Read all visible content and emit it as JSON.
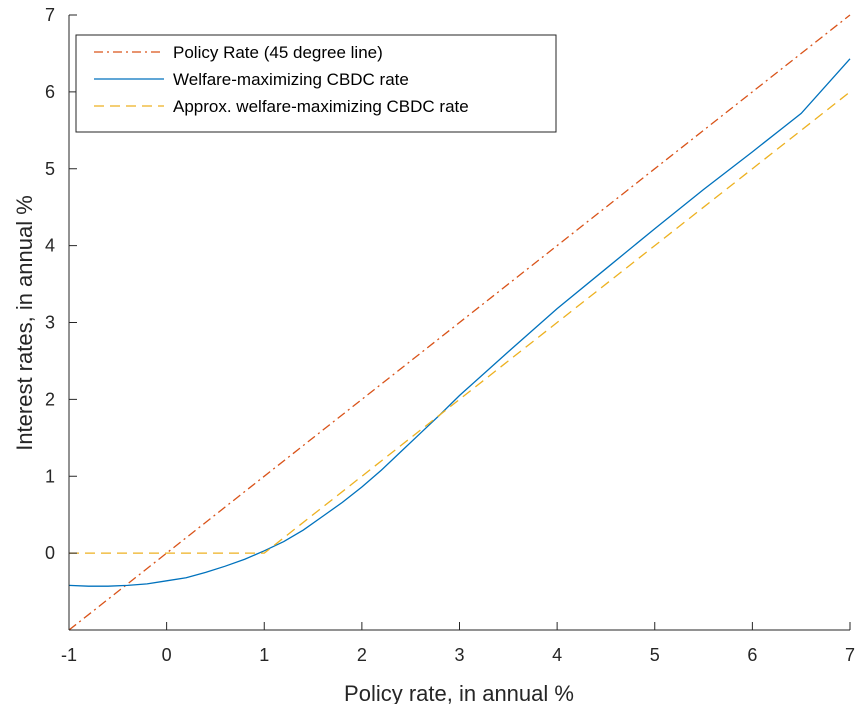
{
  "chart_data": {
    "type": "line",
    "title": "",
    "xlabel": "Policy rate, in annual %",
    "ylabel": "Interest rates, in annual %",
    "xlim": [
      -1,
      7
    ],
    "ylim": [
      -1,
      7
    ],
    "xticks": [
      "-1",
      "0",
      "1",
      "2",
      "3",
      "4",
      "5",
      "6",
      "7"
    ],
    "yticks": [
      "0",
      "1",
      "2",
      "3",
      "4",
      "5",
      "6",
      "7"
    ],
    "grid": false,
    "legend_position": "top-left",
    "series": [
      {
        "name": "Policy Rate (45 degree line)",
        "color": "#D95319",
        "dash": "dash-dot",
        "x": [
          -1,
          7
        ],
        "y": [
          -1,
          7
        ]
      },
      {
        "name": "Welfare-maximizing CBDC rate",
        "color": "#0072BD",
        "dash": "solid",
        "x": [
          -1,
          -0.8,
          -0.6,
          -0.4,
          -0.2,
          0,
          0.2,
          0.4,
          0.6,
          0.8,
          1.0,
          1.2,
          1.4,
          1.6,
          1.8,
          2.0,
          2.2,
          2.4,
          2.6,
          2.8,
          3.0,
          3.5,
          4.0,
          4.5,
          5.0,
          5.5,
          6.0,
          6.5,
          7.0
        ],
        "y": [
          -0.42,
          -0.43,
          -0.43,
          -0.42,
          -0.4,
          -0.36,
          -0.32,
          -0.25,
          -0.17,
          -0.08,
          0.03,
          0.15,
          0.3,
          0.48,
          0.66,
          0.86,
          1.08,
          1.32,
          1.56,
          1.8,
          2.05,
          2.62,
          3.18,
          3.7,
          4.22,
          4.73,
          5.22,
          5.72,
          6.43
        ]
      },
      {
        "name": "Approx. welfare-maximizing CBDC rate",
        "color": "#EDB120",
        "dash": "dashed",
        "x": [
          -1,
          1,
          7
        ],
        "y": [
          0,
          0,
          6
        ]
      }
    ]
  }
}
